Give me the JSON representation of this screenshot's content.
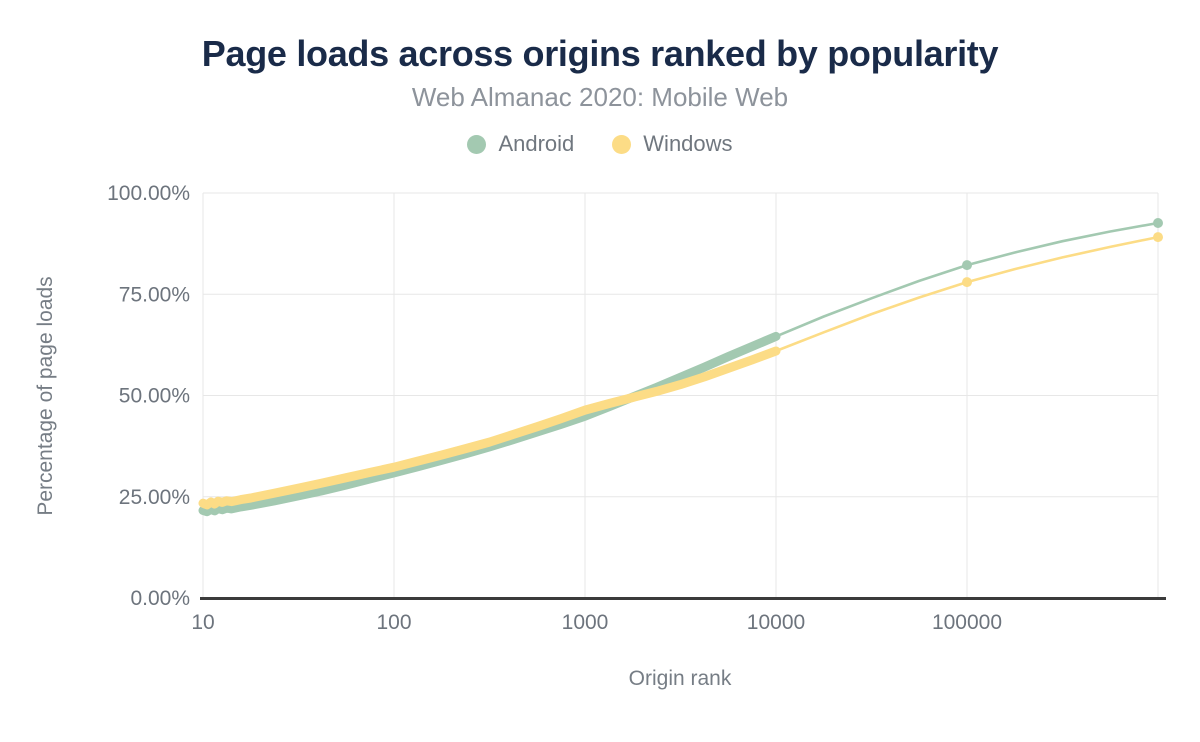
{
  "theme": {
    "background": "#ffffff",
    "title_color": "#1a2b49",
    "subtitle_color": "#8d939b",
    "tick_color": "#6d747d",
    "grid_color": "#e7e7e7",
    "axis_line_color": "#3b3b3b"
  },
  "chart_data": {
    "type": "line",
    "title": "Page loads across origins ranked by popularity",
    "subtitle": "Web Almanac 2020: Mobile Web",
    "xlabel": "Origin rank",
    "ylabel": "Percentage of page loads",
    "x_scale": "log",
    "grid": true,
    "legend_position": "top",
    "x_ticks": [
      "10",
      "100",
      "1000",
      "10000",
      "100000"
    ],
    "x_tick_values": [
      10,
      100,
      1000,
      10000,
      100000
    ],
    "xlim": [
      10,
      1000000
    ],
    "y_ticks": [
      "0.00%",
      "25.00%",
      "50.00%",
      "75.00%",
      "100.00%"
    ],
    "y_tick_values": [
      0,
      25,
      50,
      75,
      100
    ],
    "ylim": [
      0,
      100
    ],
    "series": [
      {
        "name": "Android",
        "color": "#a3c9b1",
        "dense_until": 10000,
        "marker_ranks": [
          100000,
          1000000
        ],
        "points": [
          [
            10,
            21.6
          ],
          [
            10.5,
            21.3
          ],
          [
            11,
            21.9
          ],
          [
            11.5,
            21.5
          ],
          [
            12,
            22.1
          ],
          [
            12.6,
            21.8
          ],
          [
            13.3,
            22.2
          ],
          [
            14.1,
            22.0
          ],
          [
            15.8,
            22.5
          ],
          [
            17.8,
            22.9
          ],
          [
            23.7,
            24.0
          ],
          [
            31.6,
            25.2
          ],
          [
            42.2,
            26.5
          ],
          [
            56.2,
            27.9
          ],
          [
            75,
            29.4
          ],
          [
            100,
            30.9
          ],
          [
            133,
            32.4
          ],
          [
            178,
            34.0
          ],
          [
            237,
            35.6
          ],
          [
            316,
            37.3
          ],
          [
            422,
            39.1
          ],
          [
            562,
            41.0
          ],
          [
            750,
            42.9
          ],
          [
            1000,
            44.9
          ],
          [
            1333,
            47.2
          ],
          [
            1778,
            49.6
          ],
          [
            2371,
            52.0
          ],
          [
            3162,
            54.5
          ],
          [
            4217,
            57.0
          ],
          [
            5623,
            59.6
          ],
          [
            7499,
            62.1
          ],
          [
            10000,
            64.6
          ],
          [
            17783,
            69.5
          ],
          [
            31623,
            74.0
          ],
          [
            56234,
            78.3
          ],
          [
            100000,
            82.2
          ],
          [
            177828,
            85.3
          ],
          [
            316228,
            88.1
          ],
          [
            562341,
            90.5
          ],
          [
            1000000,
            92.6
          ]
        ]
      },
      {
        "name": "Windows",
        "color": "#fcdc86",
        "dense_until": 10000,
        "marker_ranks": [
          100000,
          1000000
        ],
        "points": [
          [
            10,
            23.4
          ],
          [
            10.5,
            23.0
          ],
          [
            11,
            23.7
          ],
          [
            11.5,
            23.2
          ],
          [
            12,
            23.9
          ],
          [
            12.6,
            23.6
          ],
          [
            13.3,
            24.0
          ],
          [
            14.1,
            23.8
          ],
          [
            15.8,
            24.3
          ],
          [
            17.8,
            24.7
          ],
          [
            23.7,
            25.9
          ],
          [
            31.6,
            27.1
          ],
          [
            42.2,
            28.4
          ],
          [
            56.2,
            29.7
          ],
          [
            75,
            31.0
          ],
          [
            100,
            32.3
          ],
          [
            133,
            33.8
          ],
          [
            178,
            35.3
          ],
          [
            237,
            36.9
          ],
          [
            316,
            38.5
          ],
          [
            422,
            40.4
          ],
          [
            562,
            42.3
          ],
          [
            750,
            44.3
          ],
          [
            1000,
            46.4
          ],
          [
            1333,
            48.0
          ],
          [
            1778,
            49.5
          ],
          [
            2371,
            51.0
          ],
          [
            3162,
            52.7
          ],
          [
            4217,
            54.6
          ],
          [
            5623,
            56.7
          ],
          [
            7499,
            58.8
          ],
          [
            10000,
            61.0
          ],
          [
            17783,
            65.6
          ],
          [
            31623,
            70.1
          ],
          [
            56234,
            74.2
          ],
          [
            100000,
            78.0
          ],
          [
            177828,
            81.2
          ],
          [
            316228,
            84.1
          ],
          [
            562341,
            86.7
          ],
          [
            1000000,
            89.1
          ]
        ]
      }
    ]
  }
}
